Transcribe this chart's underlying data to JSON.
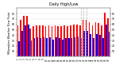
{
  "title": "Milwaukee Weather Dew Point",
  "subtitle": "Daily High/Low",
  "background_color": "#ffffff",
  "highs": [
    58,
    68,
    76,
    76,
    52,
    56,
    58,
    58,
    58,
    56,
    58,
    56,
    58,
    56,
    56,
    58,
    56,
    58,
    60,
    60,
    58,
    68,
    68,
    64,
    58,
    64,
    62,
    58,
    82,
    72
  ],
  "lows": [
    28,
    48,
    58,
    60,
    30,
    34,
    36,
    34,
    36,
    34,
    36,
    32,
    36,
    34,
    32,
    34,
    34,
    34,
    36,
    38,
    34,
    48,
    48,
    42,
    34,
    42,
    40,
    34,
    60,
    46
  ],
  "high_color": "#ff0000",
  "low_color": "#0000ff",
  "ylim": [
    0,
    90
  ],
  "yticks": [
    10,
    20,
    30,
    40,
    50,
    60,
    70,
    80
  ],
  "dashed_indices": [
    20,
    21,
    22
  ],
  "bar_width": 0.42
}
